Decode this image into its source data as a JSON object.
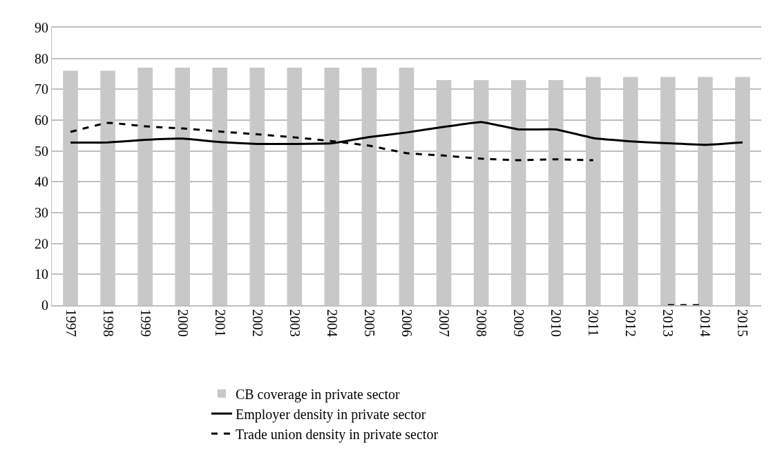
{
  "chart_data": {
    "type": "bar",
    "categories": [
      "1997",
      "1998",
      "1999",
      "2000",
      "2001",
      "2002",
      "2003",
      "2004",
      "2005",
      "2006",
      "2007",
      "2008",
      "2009",
      "2010",
      "2011",
      "2012",
      "2013",
      "2014",
      "2015"
    ],
    "series": [
      {
        "name": "CB coverage in private sector",
        "color": "#c8c8c8",
        "values": [
          76,
          76,
          77,
          77,
          77,
          77,
          77,
          77,
          77,
          77,
          73,
          73,
          73,
          73,
          74,
          74,
          74,
          74,
          74
        ]
      },
      {
        "name": "Employer density in private sector",
        "type": "line",
        "color": "#000000",
        "line_style": "solid",
        "values": [
          52.7,
          52.8,
          53.6,
          54.0,
          52.9,
          52.3,
          52.3,
          52.5,
          54.5,
          56.0,
          57.8,
          59.4,
          57.0,
          57.0,
          54.2,
          53.1,
          52.5,
          52.0,
          52.8
        ]
      },
      {
        "name": "Trade union density in private sector",
        "type": "line",
        "color": "#000000",
        "line_style": "dashed",
        "values": [
          56.2,
          59.1,
          58.0,
          57.3,
          56.3,
          55.4,
          54.4,
          53.2,
          51.7,
          49.3,
          48.5,
          47.5,
          47.0,
          47.3,
          47.0,
          null,
          0,
          0,
          null
        ]
      }
    ],
    "ylim": [
      0,
      90
    ],
    "yticks": [
      0,
      10,
      20,
      30,
      40,
      50,
      60,
      70,
      80,
      90
    ],
    "grid": "y",
    "legend": "bottom"
  }
}
